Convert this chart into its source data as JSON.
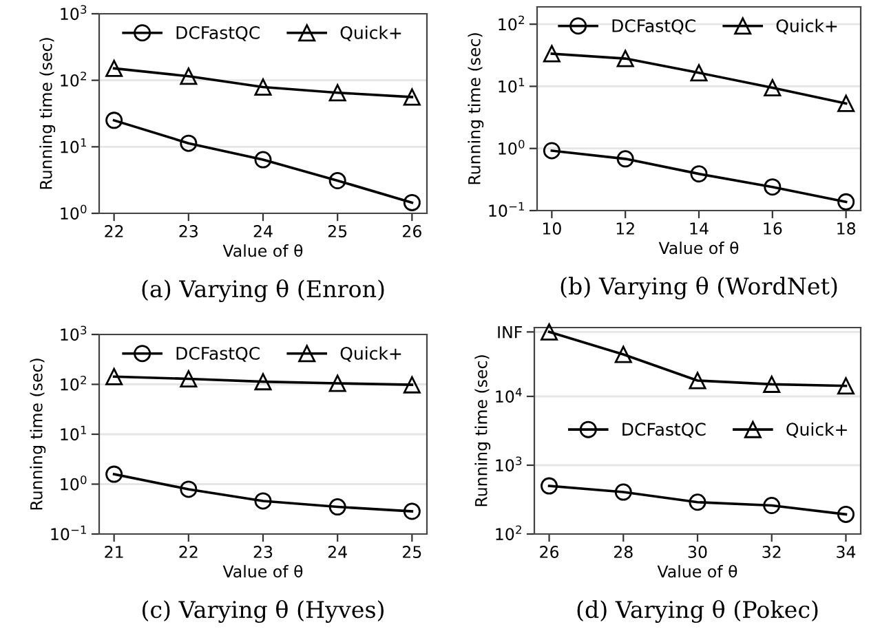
{
  "chart_data": [
    {
      "type": "line",
      "title": "(a) Varying θ (Enron)",
      "xlabel": "Value of θ",
      "ylabel": "Running time (sec)",
      "x": [
        22,
        23,
        24,
        25,
        26
      ],
      "log": "y",
      "ylim": [
        1,
        1000
      ],
      "xlim": [
        21.8,
        26.2
      ],
      "xticks": [
        22,
        23,
        24,
        25,
        26
      ],
      "yticks": [
        {
          "value": 1,
          "label": "10$^{0}$"
        },
        {
          "value": 10,
          "label": "10$^{1}$"
        },
        {
          "value": 100,
          "label": "10$^{2}$"
        },
        {
          "value": 1000,
          "label": "10$^{3}$"
        }
      ],
      "grid": "y",
      "legend": "top",
      "series": [
        {
          "name": "DCFastQC",
          "color": "#000000",
          "marker": "circle",
          "values": [
            25,
            11.3,
            6.4,
            3.1,
            1.45
          ]
        },
        {
          "name": "Quick+",
          "color": "#000000",
          "marker": "triangle",
          "values": [
            151,
            115,
            79,
            65,
            56
          ]
        }
      ]
    },
    {
      "type": "line",
      "title": "(b) Varying θ (WordNet)",
      "xlabel": "Value of θ",
      "ylabel": "Running time (sec)",
      "x": [
        10,
        12,
        14,
        16,
        18
      ],
      "log": "y",
      "ylim": [
        0.1,
        190
      ],
      "xlim": [
        9.6,
        18.4
      ],
      "xticks": [
        10,
        12,
        14,
        16,
        18
      ],
      "yticks": [
        {
          "value": 0.1,
          "label": "10$^{−1}$"
        },
        {
          "value": 1,
          "label": "10$^{0}$"
        },
        {
          "value": 10,
          "label": "10$^{1}$"
        },
        {
          "value": 100,
          "label": "10$^{2}$"
        }
      ],
      "grid": "y",
      "legend": "top",
      "series": [
        {
          "name": "DCFastQC",
          "color": "#000000",
          "marker": "circle",
          "values": [
            0.92,
            0.68,
            0.39,
            0.24,
            0.138
          ]
        },
        {
          "name": "Quick+",
          "color": "#000000",
          "marker": "triangle",
          "values": [
            33.5,
            28,
            16.5,
            9.5,
            5.3
          ]
        }
      ]
    },
    {
      "type": "line",
      "title": "(c) Varying θ (Hyves)",
      "xlabel": "Value of θ",
      "ylabel": "Running time (sec)",
      "x": [
        21,
        22,
        23,
        24,
        25
      ],
      "log": "y",
      "ylim": [
        0.1,
        1000
      ],
      "xlim": [
        20.8,
        25.2
      ],
      "xticks": [
        21,
        22,
        23,
        24,
        25
      ],
      "yticks": [
        {
          "value": 0.1,
          "label": "10$^{−1}$"
        },
        {
          "value": 1,
          "label": "10$^{0}$"
        },
        {
          "value": 10,
          "label": "10$^{1}$"
        },
        {
          "value": 100,
          "label": "10$^{2}$"
        },
        {
          "value": 1000,
          "label": "10$^{3}$"
        }
      ],
      "grid": "y",
      "legend": "top",
      "series": [
        {
          "name": "DCFastQC",
          "color": "#000000",
          "marker": "circle",
          "values": [
            1.58,
            0.79,
            0.46,
            0.35,
            0.285
          ]
        },
        {
          "name": "Quick+",
          "color": "#000000",
          "marker": "triangle",
          "values": [
            143,
            129,
            113,
            105,
            98
          ]
        }
      ]
    },
    {
      "type": "line",
      "title": "(d) Varying θ (Pokec)",
      "xlabel": "Value of θ",
      "ylabel": "Running time (sec)",
      "x": [
        26,
        28,
        30,
        32,
        34
      ],
      "log": "y",
      "ylim": [
        100,
        100000
      ],
      "xlim": [
        25.6,
        34.4
      ],
      "xticks": [
        26,
        28,
        30,
        32,
        34
      ],
      "yticks": [
        {
          "value": 100,
          "label": "10$^{2}$"
        },
        {
          "value": 1000,
          "label": "10$^{3}$"
        },
        {
          "value": 10000,
          "label": "10$^{4}$"
        },
        {
          "value": 86400,
          "label": "INF"
        }
      ],
      "grid": "y",
      "legend": "right",
      "series": [
        {
          "name": "DCFastQC",
          "color": "#000000",
          "marker": "circle",
          "values": [
            500,
            407,
            290,
            260,
            193
          ]
        },
        {
          "name": "Quick+",
          "color": "#000000",
          "marker": "triangle",
          "values": [
            86400,
            40700,
            17000,
            15000,
            14200
          ]
        }
      ]
    }
  ]
}
